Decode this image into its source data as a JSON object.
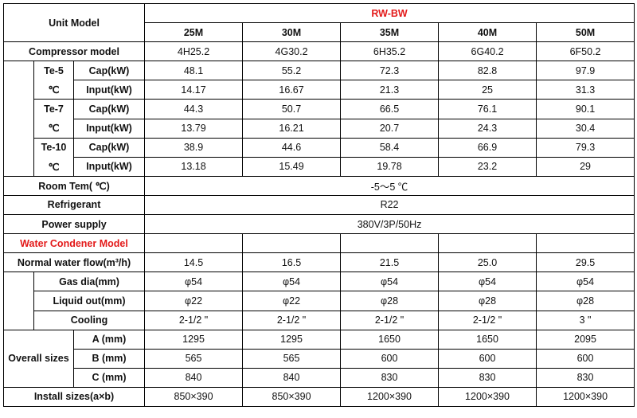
{
  "header": {
    "unit_model": "Unit Model",
    "series": "RW-BW",
    "models": [
      "25M",
      "30M",
      "35M",
      "40M",
      "50M"
    ]
  },
  "compressor": {
    "label": "Compressor model",
    "values": [
      "4H25.2",
      "4G30.2",
      "6H35.2",
      "6G40.2",
      "6F50.2"
    ]
  },
  "te_rows": [
    {
      "te": "Te-5",
      "unit": "℃",
      "cap": {
        "label": "Cap(kW)",
        "values": [
          "48.1",
          "55.2",
          "72.3",
          "82.8",
          "97.9"
        ]
      },
      "input": {
        "label": "Input(kW)",
        "values": [
          "14.17",
          "16.67",
          "21.3",
          "25",
          "31.3"
        ]
      }
    },
    {
      "te": "Te-7",
      "unit": "℃",
      "cap": {
        "label": "Cap(kW)",
        "values": [
          "44.3",
          "50.7",
          "66.5",
          "76.1",
          "90.1"
        ]
      },
      "input": {
        "label": "Input(kW)",
        "values": [
          "13.79",
          "16.21",
          "20.7",
          "24.3",
          "30.4"
        ]
      }
    },
    {
      "te": "Te-10",
      "unit": "℃",
      "cap": {
        "label": "Cap(kW)",
        "values": [
          "38.9",
          "44.6",
          "58.4",
          "66.9",
          "79.3"
        ]
      },
      "input": {
        "label": "Input(kW)",
        "values": [
          "13.18",
          "15.49",
          "19.78",
          "23.2",
          "29"
        ]
      }
    }
  ],
  "room_temp": {
    "label": "Room Tem( ℃)",
    "value": "-5～5 ℃"
  },
  "refrigerant": {
    "label": "Refrigerant",
    "value": "R22"
  },
  "power_supply": {
    "label": "Power supply",
    "value": "380V/3P/50Hz"
  },
  "water_condenser": {
    "label": "Water Condener Model"
  },
  "water_flow": {
    "label": "Normal water flow(m³/h)",
    "values": [
      "14.5",
      "16.5",
      "21.5",
      "25.0",
      "29.5"
    ]
  },
  "gas_dia": {
    "label": "Gas dia(mm)",
    "values": [
      "φ54",
      "φ54",
      "φ54",
      "φ54",
      "φ54"
    ]
  },
  "liquid_out": {
    "label": "Liquid out(mm)",
    "values": [
      "φ22",
      "φ22",
      "φ28",
      "φ28",
      "φ28"
    ]
  },
  "cooling": {
    "label": "Cooling",
    "values": [
      "2-1/2 \"",
      "2-1/2 \"",
      "2-1/2 \"",
      "2-1/2 \"",
      "3 \""
    ]
  },
  "overall": {
    "label": "Overall sizes",
    "rows": [
      {
        "label": "A (mm)",
        "values": [
          "1295",
          "1295",
          "1650",
          "1650",
          "2095"
        ]
      },
      {
        "label": "B (mm)",
        "values": [
          "565",
          "565",
          "600",
          "600",
          "600"
        ]
      },
      {
        "label": "C (mm)",
        "values": [
          "840",
          "840",
          "830",
          "830",
          "830"
        ]
      }
    ]
  },
  "install": {
    "label": "Install sizes(a×b)",
    "values": [
      "850×390",
      "850×390",
      "1200×390",
      "1200×390",
      "1200×390"
    ]
  }
}
